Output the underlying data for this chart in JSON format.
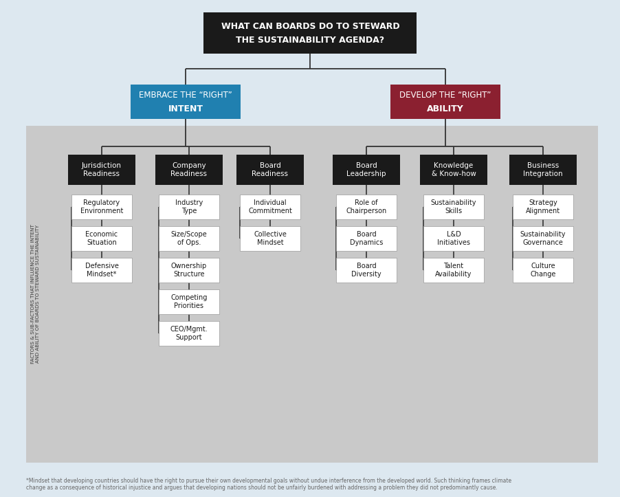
{
  "bg_color": "#dde8f0",
  "gray_box_color": "#c9c9c9",
  "title_box_color": "#1a1a1a",
  "title_text_color": "#ffffff",
  "intent_box_color": "#2080b0",
  "ability_box_color": "#8b2030",
  "factor_box_color": "#1a1a1a",
  "factor_text_color": "#ffffff",
  "sub_box_color": "#ffffff",
  "sub_text_color": "#1a1a1a",
  "line_color": "#333333",
  "title_line1": "WHAT CAN BOARDS DO TO STEWARD",
  "title_line2": "THE SUSTAINABILITY AGENDA?",
  "intent_line1": "EMBRACE THE “RIGHT”",
  "intent_line2": "INTENT",
  "ability_line1": "DEVELOP THE “RIGHT”",
  "ability_line2": "ABILITY",
  "side_label": "FACTORS & SUB-FACTORS THAT INFLUENCE THE INTENT\nAND ABILITY OF BOARDS TO STEWARD SUSTAINABILITY",
  "factors": [
    {
      "label": "Jurisdiction\nReadiness",
      "subs": [
        "Regulatory\nEnvironment",
        "Economic\nSituation",
        "Defensive\nMindset*"
      ]
    },
    {
      "label": "Company\nReadiness",
      "subs": [
        "Industry\nType",
        "Size/Scope\nof Ops.",
        "Ownership\nStructure",
        "Competing\nPriorities",
        "CEO/Mgmt.\nSupport"
      ]
    },
    {
      "label": "Board\nReadiness",
      "subs": [
        "Individual\nCommitment",
        "Collective\nMindset"
      ]
    },
    {
      "label": "Board\nLeadership",
      "subs": [
        "Role of\nChairperson",
        "Board\nDynamics",
        "Board\nDiversity"
      ]
    },
    {
      "label": "Knowledge\n& Know-how",
      "subs": [
        "Sustainability\nSkills",
        "L&D\nInitiatives",
        "Talent\nAvailability"
      ]
    },
    {
      "label": "Business\nIntegration",
      "subs": [
        "Strategy\nAlignment",
        "Sustainability\nGovernance",
        "Culture\nChange"
      ]
    }
  ],
  "footnote": "*Mindset that developing countries should have the right to pursue their own developmental goals without undue interference from the developed world. Such thinking frames climate\nchange as a consequence of historical injustice and argues that developing nations should not be unfairly burdened with addressing a problem they did not predominantly cause."
}
